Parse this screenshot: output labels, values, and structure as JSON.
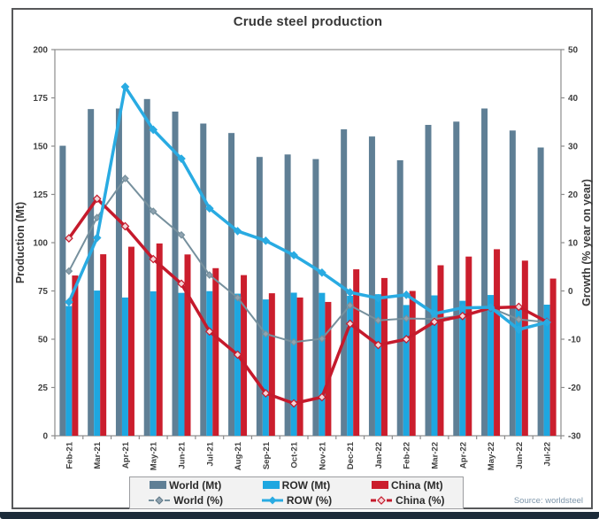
{
  "page": {
    "title": "Crude steel production",
    "source": "Source: worldsteel"
  },
  "legend": {
    "world_mt": "World (Mt)",
    "row_mt": "ROW (Mt)",
    "china_mt": "China (Mt)",
    "world_pct": "World (%)",
    "row_pct": "ROW (%)",
    "china_pct": "China (%)"
  },
  "colors": {
    "world_bar": "#5f7f95",
    "row_bar": "#1ea7e0",
    "china_bar": "#cb1e2d",
    "world_line": "#76909d",
    "row_line": "#29abe2",
    "china_line": "#c51a2c",
    "axis_text": "#404040",
    "frame": "#8c8c8c",
    "legend_bg": "#f2f2f2",
    "bottom_strip": "#1d2c3a",
    "source_text": "#7f97ab"
  },
  "chart_data": {
    "type": "combo (grouped bar + line)",
    "title": "Crude steel production",
    "categories": [
      "Feb-21",
      "Mar-21",
      "Apr-21",
      "May-21",
      "Jun-21",
      "Jul-21",
      "Aug-21",
      "Sep-21",
      "Oct-21",
      "Nov-21",
      "Dec-21",
      "Jan-22",
      "Feb-22",
      "Mar-22",
      "Apr-22",
      "May-22",
      "Jun-22",
      "Jul-22"
    ],
    "left_axis": {
      "label": "Production (Mt)",
      "min": 0,
      "max": 200,
      "step": 25
    },
    "right_axis": {
      "label": "Growth (% year on year)",
      "min": -30,
      "max": 50,
      "step": 10
    },
    "grid": false,
    "legend_position": "bottom",
    "source": "Source: worldsteel",
    "bar_series": [
      {
        "name": "World (Mt)",
        "axis": "left",
        "color": "#5f7f95",
        "values": [
          150.2,
          169.2,
          169.5,
          174.4,
          167.9,
          161.7,
          156.8,
          144.4,
          145.7,
          143.3,
          158.7,
          155.0,
          142.7,
          161.0,
          162.7,
          169.5,
          158.1,
          149.3
        ]
      },
      {
        "name": "ROW (Mt)",
        "axis": "left",
        "color": "#1ea7e0",
        "values": [
          67.2,
          75.2,
          71.6,
          74.8,
          74.0,
          74.9,
          73.6,
          70.6,
          74.1,
          74.0,
          72.5,
          73.3,
          67.7,
          72.7,
          69.9,
          72.9,
          67.4,
          67.9
        ]
      },
      {
        "name": "China (Mt)",
        "axis": "left",
        "color": "#cb1e2d",
        "values": [
          83.0,
          94.0,
          97.9,
          99.6,
          93.9,
          86.8,
          83.2,
          73.8,
          71.6,
          69.3,
          86.2,
          81.7,
          75.0,
          88.3,
          92.8,
          96.6,
          90.7,
          81.4
        ]
      }
    ],
    "line_series": [
      {
        "name": "World (%)",
        "axis": "right",
        "color": "#76909d",
        "width": 2,
        "marker": "diamond",
        "marker_fill": "#8fa3b0",
        "values": [
          4.1,
          15.2,
          23.3,
          16.5,
          11.6,
          3.3,
          -1.4,
          -8.9,
          -10.6,
          -9.9,
          -3.0,
          -6.1,
          -5.7,
          -5.8,
          -5.1,
          -3.5,
          -5.9,
          -6.5
        ]
      },
      {
        "name": "China (%)",
        "axis": "right",
        "color": "#c51a2c",
        "width": 3.5,
        "marker": "diamond",
        "marker_fill": "#f4d5d8",
        "values": [
          10.9,
          19.1,
          13.4,
          6.6,
          1.5,
          -8.4,
          -13.2,
          -21.2,
          -23.3,
          -22.0,
          -6.8,
          -11.2,
          -10.0,
          -6.4,
          -5.2,
          -3.5,
          -3.3,
          -6.4
        ]
      },
      {
        "name": "ROW (%)",
        "axis": "right",
        "color": "#29abe2",
        "width": 3.5,
        "marker": "diamond",
        "marker_fill": "#29abe2",
        "values": [
          -2.3,
          11.0,
          42.3,
          33.4,
          27.4,
          17.1,
          12.4,
          10.4,
          7.4,
          3.8,
          -0.3,
          -1.5,
          -0.8,
          -4.7,
          -3.5,
          -3.4,
          -8.0,
          -6.5
        ]
      }
    ]
  }
}
